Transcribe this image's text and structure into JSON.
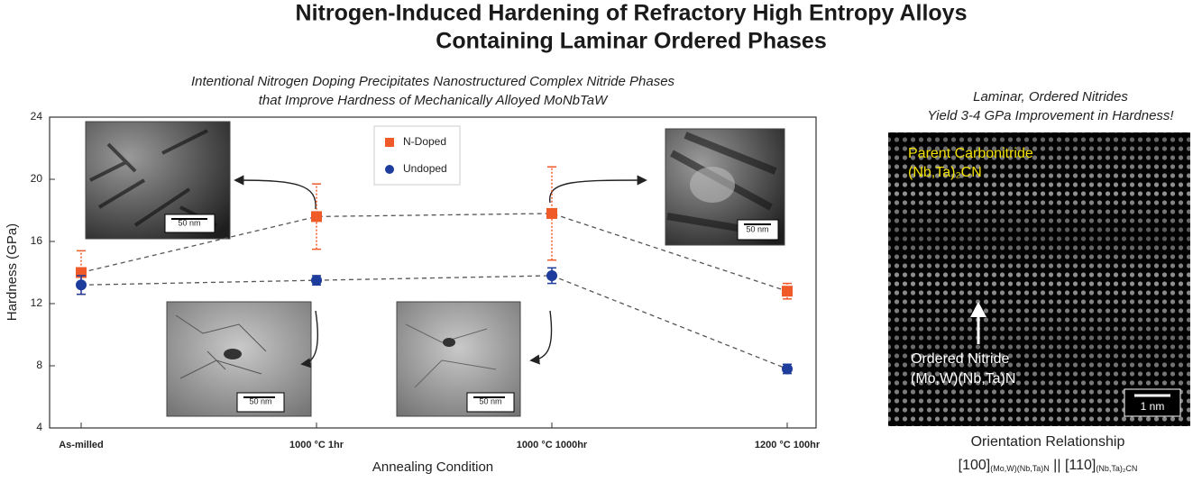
{
  "header": {
    "title_lines": [
      "Nitrogen-Induced Hardening of Refractory High Entropy Alloys",
      "Containing Laminar Ordered Phases"
    ]
  },
  "chart_data": {
    "type": "scatter-line",
    "subtitle_lines": [
      "Intentional Nitrogen Doping Precipitates Nanostructured Complex Nitride Phases",
      "that Improve Hardness of Mechanically Alloyed MoNbTaW"
    ],
    "categories": [
      "As-milled",
      "1000 °C 1hr",
      "1000 °C 1000hr",
      "1200 °C 100hr"
    ],
    "series": [
      {
        "name": "N-Doped",
        "color": "#f05a28",
        "marker": "square",
        "values": [
          14.0,
          17.6,
          17.8,
          12.8
        ],
        "errors": [
          1.4,
          2.1,
          3.0,
          0.5
        ]
      },
      {
        "name": "Undoped",
        "color": "#1e3c9c",
        "marker": "circle",
        "values": [
          13.2,
          13.5,
          13.8,
          7.8
        ],
        "errors": [
          0.6,
          0.3,
          0.5,
          0.3
        ]
      }
    ],
    "ylim": [
      4,
      24
    ],
    "yticks": [
      4,
      8,
      12,
      16,
      20,
      24
    ],
    "ylabel": "Hardness (GPa)",
    "xlabel": "Annealing Condition",
    "insets": [
      {
        "scale": "50 nm"
      },
      {
        "scale": "50 nm"
      },
      {
        "scale": "50 nm"
      },
      {
        "scale": "50 nm"
      }
    ]
  },
  "panel": {
    "caption_lines": [
      "Laminar, Ordered Nitrides",
      "Yield 3-4 GPa Improvement in Hardness!"
    ],
    "parent": [
      "Parent Carbonitride",
      "(Nb,Ta)₂CN"
    ],
    "ordered": [
      "Ordered Nitride",
      "(Mo,W)(Nb,Ta)N"
    ],
    "scale": "1 nm",
    "orientation_title": "Orientation Relationship",
    "orientation": {
      "a": "[100]",
      "a_sub": "(Mo,W)(Nb,Ta)N",
      "sep": " || [110]",
      "b_sub": "(Nb,Ta)₂CN"
    }
  }
}
